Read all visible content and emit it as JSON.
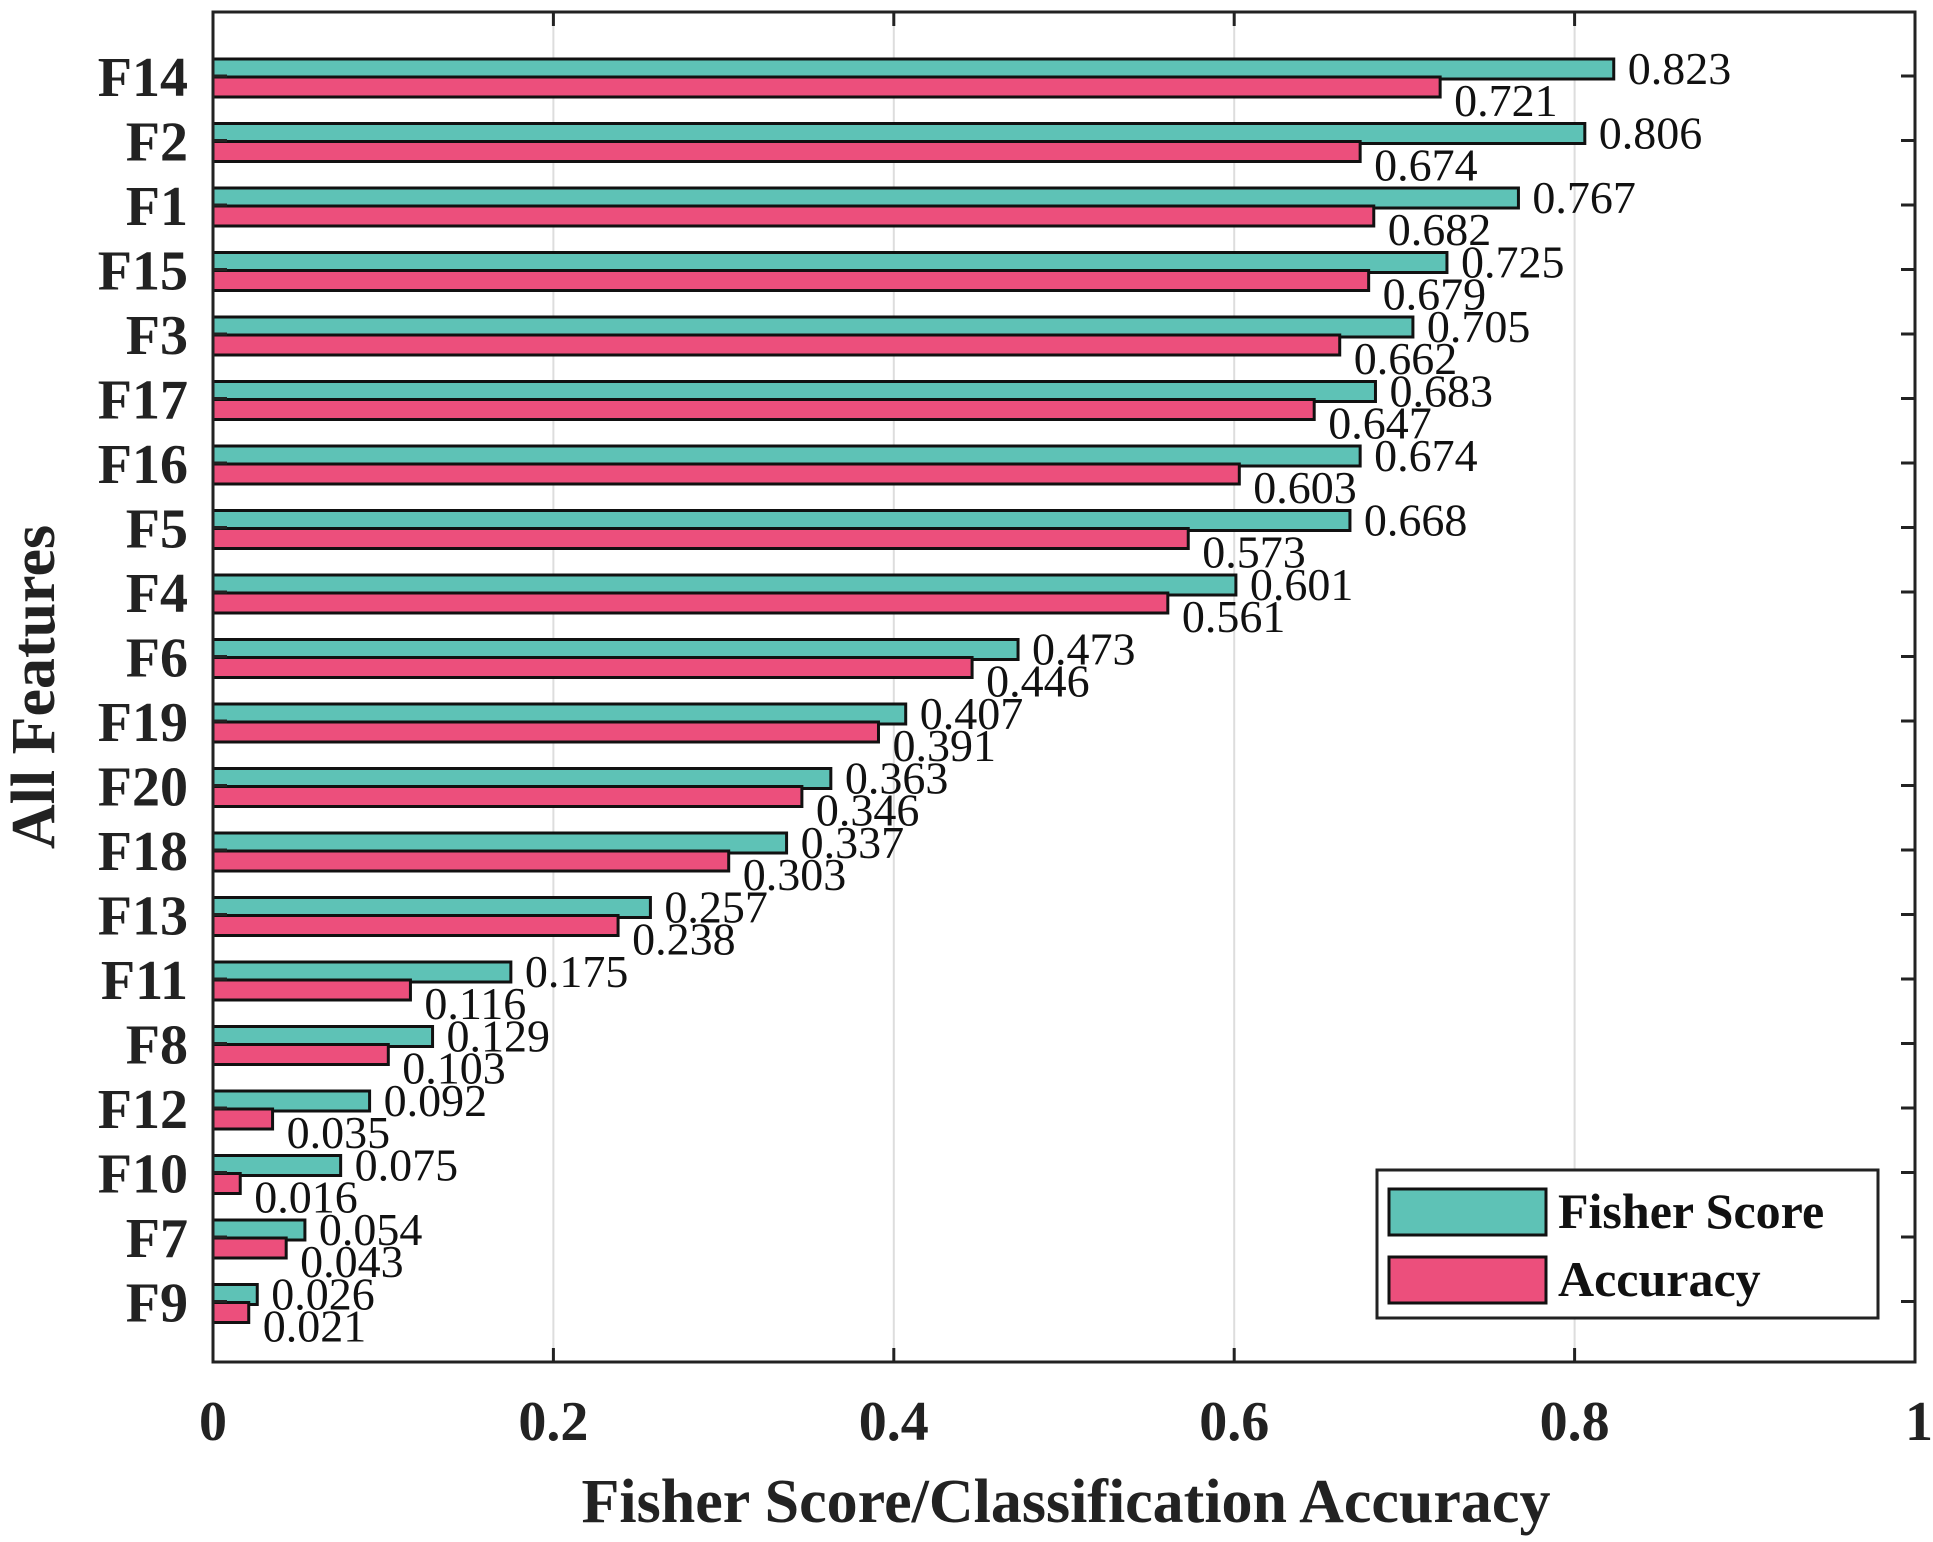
{
  "chart_data": {
    "type": "bar",
    "orientation": "horizontal",
    "title": "",
    "xlabel": "Fisher Score/Classification Accuracy",
    "ylabel": "All Features",
    "xlim": [
      0,
      1
    ],
    "xticks": [
      "0",
      "0.2",
      "0.4",
      "0.6",
      "0.8",
      "1"
    ],
    "grid": "vertical",
    "categories": [
      "F14",
      "F2",
      "F1",
      "F15",
      "F3",
      "F17",
      "F16",
      "F5",
      "F4",
      "F6",
      "F19",
      "F20",
      "F18",
      "F13",
      "F11",
      "F8",
      "F12",
      "F10",
      "F7",
      "F9"
    ],
    "series": [
      {
        "name": "Fisher Score",
        "color": "#5ec2b6",
        "values": [
          0.823,
          0.806,
          0.767,
          0.725,
          0.705,
          0.683,
          0.674,
          0.668,
          0.601,
          0.473,
          0.407,
          0.363,
          0.337,
          0.257,
          0.175,
          0.129,
          0.092,
          0.075,
          0.054,
          0.026
        ],
        "labels": [
          "0.823",
          "0.806",
          "0.767",
          "0.725",
          "0.705",
          "0.683",
          "0.674",
          "0.668",
          "0.601",
          "0.473",
          "0.407",
          "0.363",
          "0.337",
          "0.257",
          "0.175",
          "0.129",
          "0.092",
          "0.075",
          "0.054",
          "0.026"
        ]
      },
      {
        "name": "Accuracy",
        "color": "#ec4f7c",
        "values": [
          0.721,
          0.674,
          0.682,
          0.679,
          0.662,
          0.647,
          0.603,
          0.573,
          0.561,
          0.446,
          0.391,
          0.346,
          0.303,
          0.238,
          0.116,
          0.103,
          0.035,
          0.016,
          0.043,
          0.021
        ],
        "labels": [
          "0.721",
          "0.674",
          "0.682",
          "0.679",
          "0.662",
          "0.647",
          "0.603",
          "0.573",
          "0.561",
          "0.446",
          "0.391",
          "0.346",
          "0.303",
          "0.238",
          "0.116",
          "0.103",
          "0.035",
          "0.016",
          "0.043",
          "0.021"
        ]
      }
    ],
    "legend": {
      "position": "bottom-right",
      "entries": [
        "Fisher Score",
        "Accuracy"
      ]
    }
  }
}
